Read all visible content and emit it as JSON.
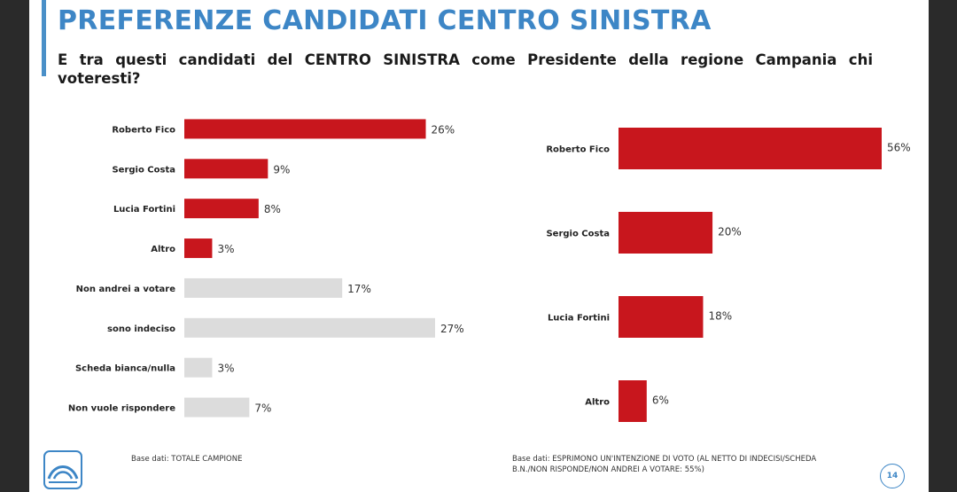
{
  "slide": {
    "title": "PREFERENZE CANDIDATI CENTRO SINISTRA",
    "question": "E tra questi candidati del CENTRO SINISTRA come Presidente della regione Campania chi voteresti?",
    "footnote_left": "Base dati: TOTALE CAMPIONE",
    "footnote_right": "Base dati: ESPRIMONO UN'INTENZIONE DI VOTO (AL NETTO DI INDECISI/SCHEDA B.N./NON RISPONDE/NON ANDREI A VOTARE: 55%)",
    "page_number": "14",
    "accent_color": "#3d86c6",
    "logo_icon": "institute-logo-icon"
  },
  "chart_data": [
    {
      "type": "bar",
      "orientation": "horizontal",
      "title": "",
      "xlabel": "",
      "ylabel": "",
      "xlim": [
        0,
        27
      ],
      "grid": false,
      "categories": [
        "Roberto Fico",
        "Sergio Costa",
        "Lucia Fortini",
        "Altro",
        "Non andrei a votare",
        "sono indeciso",
        "Scheda bianca/nulla",
        "Non vuole rispondere"
      ],
      "values": [
        26,
        9,
        8,
        3,
        17,
        27,
        3,
        7
      ],
      "labels": [
        "26%",
        "9%",
        "8%",
        "3%",
        "17%",
        "27%",
        "3%",
        "7%"
      ],
      "colors": [
        "#c8161d",
        "#c8161d",
        "#c8161d",
        "#c8161d",
        "#dcdcdc",
        "#dcdcdc",
        "#dcdcdc",
        "#dcdcdc"
      ]
    },
    {
      "type": "bar",
      "orientation": "horizontal",
      "title": "",
      "xlabel": "",
      "ylabel": "",
      "xlim": [
        0,
        56
      ],
      "grid": false,
      "categories": [
        "Roberto Fico",
        "Sergio Costa",
        "Lucia Fortini",
        "Altro"
      ],
      "values": [
        56,
        20,
        18,
        6
      ],
      "labels": [
        "56%",
        "20%",
        "18%",
        "6%"
      ],
      "colors": [
        "#c8161d",
        "#c8161d",
        "#c8161d",
        "#c8161d"
      ]
    }
  ]
}
